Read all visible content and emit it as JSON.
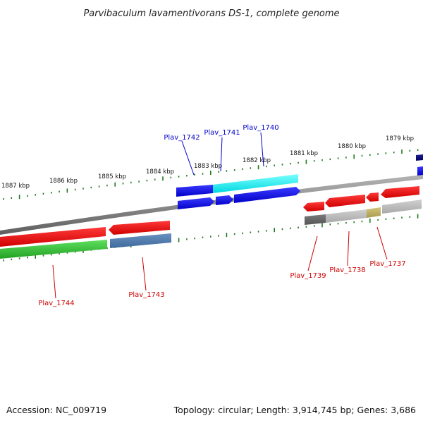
{
  "title": "Parvibaculum lavamentivorans DS-1, complete genome",
  "footer": {
    "accession": "Accession: NC_009719",
    "topology": "Topology: circular; Length: 3,914,745 bp; Genes: 3,686"
  },
  "colors": {
    "backbone": "#8a8a8a",
    "tick": "#1f7a1f",
    "label_blue": "#0000cc",
    "label_red": "#cc0000"
  },
  "scale_ticks": [
    {
      "label": "1887 kbp"
    },
    {
      "label": "1886 kbp"
    },
    {
      "label": "1885 kbp"
    },
    {
      "label": "1884 kbp"
    },
    {
      "label": "1883 kbp"
    },
    {
      "label": "1882 kbp"
    },
    {
      "label": "1881 kbp"
    },
    {
      "label": "1880 kbp"
    },
    {
      "label": "1879 kbp"
    }
  ],
  "genes": [
    {
      "name": "Plav_1742",
      "strand": "+",
      "color": "#0000ee"
    },
    {
      "name": "Plav_1741",
      "strand": "+",
      "color": "#0000ee"
    },
    {
      "name": "Plav_1740",
      "strand": "+",
      "color": "#0000ee"
    },
    {
      "name": "Plav_1739",
      "strand": "-",
      "color": "#ee0000"
    },
    {
      "name": "Plav_1738",
      "strand": "-",
      "color": "#ee0000"
    },
    {
      "name": "Plav_1737",
      "strand": "-",
      "color": "#ee0000"
    },
    {
      "name": "Plav_1744",
      "strand": "-",
      "color": "#ee0000"
    },
    {
      "name": "Plav_1743",
      "strand": "-",
      "color": "#ee0000"
    }
  ]
}
